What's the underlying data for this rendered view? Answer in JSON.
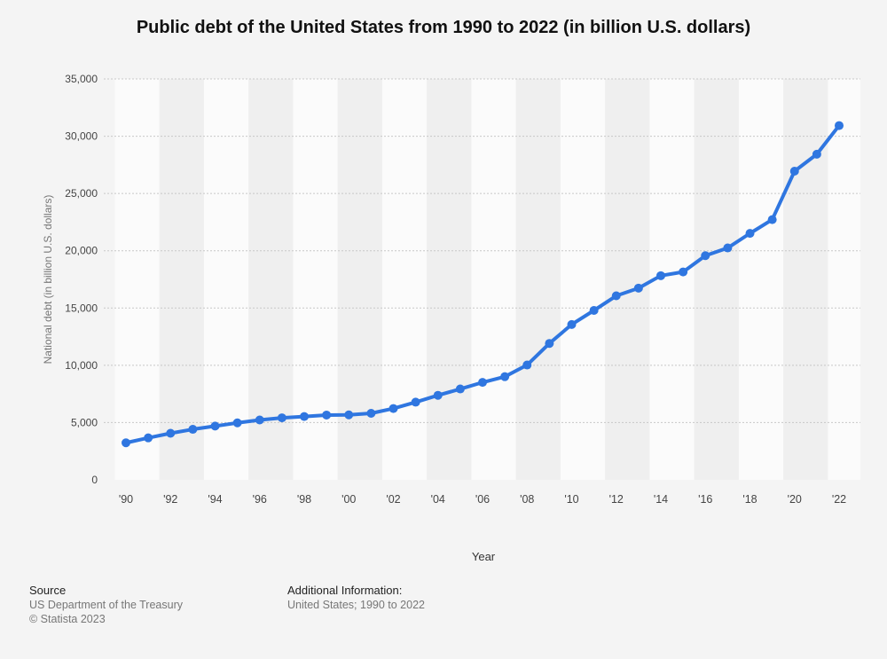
{
  "chart_data": {
    "type": "line",
    "title": "Public debt of the United States from 1990 to 2022 (in billion U.S. dollars)",
    "xlabel": "Year",
    "ylabel": "National debt (in billion U.S. dollars)",
    "ylim": [
      0,
      35000
    ],
    "yticks": [
      0,
      5000,
      10000,
      15000,
      20000,
      25000,
      30000,
      35000
    ],
    "ytick_labels": [
      "0",
      "5,000",
      "10,000",
      "15,000",
      "20,000",
      "25,000",
      "30,000",
      "35,000"
    ],
    "x": [
      1990,
      1991,
      1992,
      1993,
      1994,
      1995,
      1996,
      1997,
      1998,
      1999,
      2000,
      2001,
      2002,
      2003,
      2004,
      2005,
      2006,
      2007,
      2008,
      2009,
      2010,
      2011,
      2012,
      2013,
      2014,
      2015,
      2016,
      2017,
      2018,
      2019,
      2020,
      2021,
      2022
    ],
    "xtick_labels": [
      "'90",
      "'92",
      "'94",
      "'96",
      "'98",
      "'00",
      "'02",
      "'04",
      "'06",
      "'08",
      "'10",
      "'12",
      "'14",
      "'16",
      "'18",
      "'20",
      "'22"
    ],
    "series": [
      {
        "name": "National debt",
        "color": "#2f76e0",
        "values": [
          3233,
          3665,
          4065,
          4411,
          4693,
          4974,
          5225,
          5413,
          5526,
          5656,
          5674,
          5807,
          6228,
          6783,
          7379,
          7933,
          8507,
          9008,
          10025,
          11910,
          13562,
          14790,
          16066,
          16738,
          17824,
          18151,
          19573,
          20245,
          21516,
          22719,
          26945,
          28429,
          30929
        ]
      }
    ]
  },
  "footer": {
    "source_heading": "Source",
    "source_line1": "US Department of the Treasury",
    "source_line2": "© Statista 2023",
    "addinfo_heading": "Additional Information:",
    "addinfo_line1": "United States; 1990 to 2022"
  }
}
